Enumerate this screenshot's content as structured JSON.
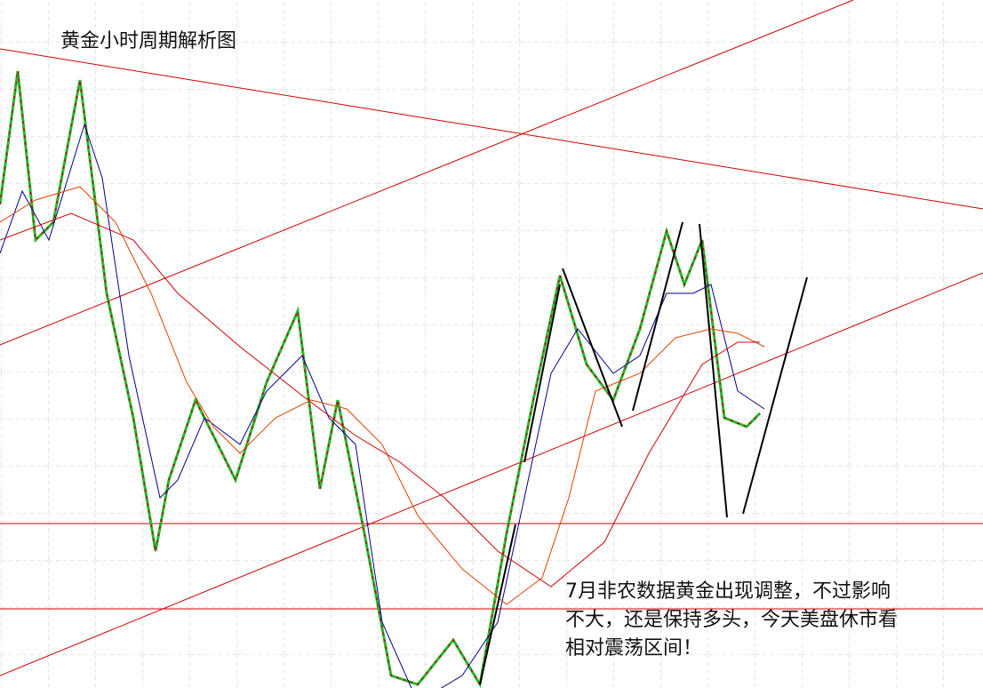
{
  "header": {
    "title": "黄金小时周期解析图"
  },
  "annotation": {
    "lines": [
      "7月非农数据黄金出现调整，不过影响",
      "不大，还是保持多头，今天美盘休市看",
      "相对震荡区间！"
    ]
  }
}
